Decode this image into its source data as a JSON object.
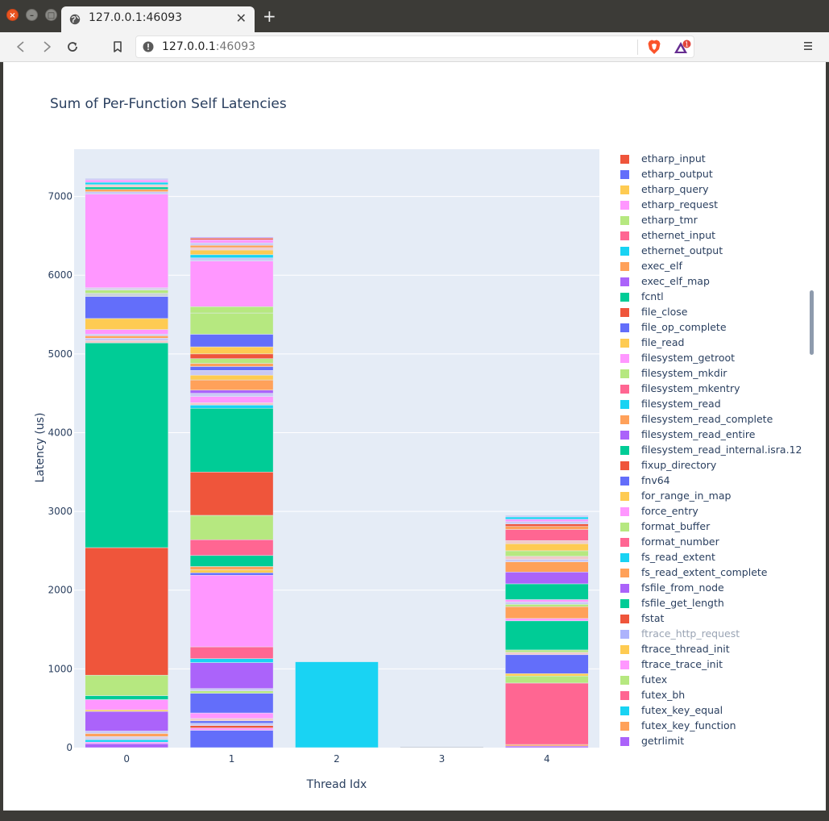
{
  "browser": {
    "tab_title": "127.0.0.1:46093",
    "url_host": "127.0.0.1",
    "url_port": ":46093",
    "rewards_badge": "1"
  },
  "chart_data": {
    "type": "bar",
    "title": "Sum of Per-Function Self Latencies",
    "xlabel": "Thread Idx",
    "ylabel": "Latency (us)",
    "categories": [
      "0",
      "1",
      "2",
      "3",
      "4"
    ],
    "ylim": [
      0,
      7600
    ],
    "yticks": [
      0,
      1000,
      2000,
      3000,
      4000,
      5000,
      6000,
      7000
    ],
    "totals": [
      7390,
      6650,
      1090,
      0,
      2990
    ],
    "series": [
      {
        "name": "etharp_input",
        "color": "#EF553B",
        "values": [
          0,
          10,
          0,
          0,
          0
        ]
      },
      {
        "name": "etharp_output",
        "color": "#636EFA",
        "values": [
          0,
          0,
          0,
          0,
          0
        ]
      },
      {
        "name": "etharp_query",
        "color": "#FECB52",
        "values": [
          0,
          0,
          0,
          0,
          0
        ]
      },
      {
        "name": "etharp_request",
        "color": "#FF97FF",
        "values": [
          0,
          10,
          0,
          0,
          0
        ]
      },
      {
        "name": "etharp_tmr",
        "color": "#B6E880",
        "values": [
          0,
          0,
          0,
          0,
          0
        ]
      },
      {
        "name": "ethernet_input",
        "color": "#FF6692",
        "values": [
          0,
          0,
          0,
          0,
          0
        ]
      },
      {
        "name": "ethernet_output",
        "color": "#19D3F3",
        "values": [
          0,
          0,
          0,
          0,
          0
        ]
      },
      {
        "name": "exec_elf",
        "color": "#FFA15A",
        "values": [
          0,
          0,
          0,
          0,
          0
        ]
      },
      {
        "name": "exec_elf_map",
        "color": "#AB63FA",
        "values": [
          0,
          0,
          0,
          0,
          0
        ]
      },
      {
        "name": "fcntl",
        "color": "#00CC96",
        "values": [
          0,
          0,
          0,
          0,
          0
        ]
      },
      {
        "name": "file_close",
        "color": "#EF553B",
        "values": [
          0,
          0,
          0,
          0,
          0
        ]
      },
      {
        "name": "file_op_complete",
        "color": "#636EFA",
        "values": [
          0,
          0,
          0,
          0,
          0
        ]
      },
      {
        "name": "file_read",
        "color": "#FECB52",
        "values": [
          0,
          0,
          0,
          0,
          0
        ]
      },
      {
        "name": "filesystem_getroot",
        "color": "#FF97FF",
        "values": [
          0,
          0,
          0,
          0,
          0
        ]
      },
      {
        "name": "filesystem_mkdir",
        "color": "#B6E880",
        "values": [
          0,
          0,
          0,
          0,
          0
        ]
      },
      {
        "name": "filesystem_mkentry",
        "color": "#FF6692",
        "values": [
          0,
          0,
          0,
          0,
          0
        ]
      },
      {
        "name": "filesystem_read",
        "color": "#19D3F3",
        "values": [
          0,
          0,
          0,
          0,
          0
        ]
      },
      {
        "name": "filesystem_read_complete",
        "color": "#FFA15A",
        "values": [
          0,
          0,
          0,
          0,
          0
        ]
      },
      {
        "name": "filesystem_read_entire",
        "color": "#AB63FA",
        "values": [
          0,
          0,
          0,
          0,
          0
        ]
      },
      {
        "name": "filesystem_read_internal.isra.12",
        "color": "#00CC96",
        "values": [
          0,
          0,
          0,
          0,
          0
        ]
      },
      {
        "name": "fixup_directory",
        "color": "#EF553B",
        "values": [
          0,
          0,
          0,
          0,
          0
        ]
      },
      {
        "name": "fnv64",
        "color": "#636EFA",
        "values": [
          0,
          0,
          0,
          0,
          0
        ]
      },
      {
        "name": "for_range_in_map",
        "color": "#FECB52",
        "values": [
          0,
          0,
          0,
          0,
          0
        ]
      },
      {
        "name": "force_entry",
        "color": "#FF97FF",
        "values": [
          0,
          0,
          0,
          0,
          0
        ]
      },
      {
        "name": "format_buffer",
        "color": "#B6E880",
        "values": [
          0,
          0,
          0,
          0,
          0
        ]
      },
      {
        "name": "format_number",
        "color": "#FF6692",
        "values": [
          0,
          0,
          0,
          0,
          0
        ]
      },
      {
        "name": "fs_read_extent",
        "color": "#19D3F3",
        "values": [
          0,
          0,
          0,
          0,
          0
        ]
      },
      {
        "name": "fs_read_extent_complete",
        "color": "#FFA15A",
        "values": [
          0,
          0,
          0,
          0,
          0
        ]
      },
      {
        "name": "fsfile_from_node",
        "color": "#AB63FA",
        "values": [
          0,
          0,
          0,
          0,
          0
        ]
      },
      {
        "name": "fsfile_get_length",
        "color": "#00CC96",
        "values": [
          0,
          0,
          0,
          0,
          0
        ]
      },
      {
        "name": "fstat",
        "color": "#EF553B",
        "values": [
          0,
          0,
          0,
          0,
          0
        ]
      },
      {
        "name": "ftrace_http_request",
        "color": "#ADB3FC",
        "hidden": true,
        "values": [
          0,
          0,
          0,
          0,
          0
        ]
      },
      {
        "name": "ftrace_thread_init",
        "color": "#FECB52",
        "values": [
          0,
          0,
          0,
          0,
          0
        ]
      },
      {
        "name": "ftrace_trace_init",
        "color": "#FF97FF",
        "values": [
          0,
          0,
          0,
          0,
          0
        ]
      },
      {
        "name": "futex",
        "color": "#B6E880",
        "values": [
          0,
          0,
          0,
          0,
          0
        ]
      },
      {
        "name": "futex_bh",
        "color": "#FF6692",
        "values": [
          0,
          0,
          0,
          0,
          780
        ]
      },
      {
        "name": "futex_key_equal",
        "color": "#19D3F3",
        "values": [
          0,
          0,
          1090,
          0,
          0
        ]
      },
      {
        "name": "futex_key_function",
        "color": "#FFA15A",
        "values": [
          0,
          0,
          0,
          0,
          0
        ]
      },
      {
        "name": "getrlimit",
        "color": "#AB63FA",
        "values": [
          0,
          0,
          0,
          0,
          0
        ]
      }
    ],
    "stack_segments": [
      [
        {
          "v": 50,
          "c": "#AB63FA"
        },
        {
          "v": 20,
          "c": "#FF97FF"
        },
        {
          "v": 30,
          "c": "#19D3F3"
        },
        {
          "v": 40,
          "c": "#D9D2E9"
        },
        {
          "v": 40,
          "c": "#FFA15A"
        },
        {
          "v": 30,
          "c": "#C9C9F5"
        },
        {
          "v": 250,
          "c": "#AB63FA"
        },
        {
          "v": 20,
          "c": "#FECB52"
        },
        {
          "v": 130,
          "c": "#FF97FF"
        },
        {
          "v": 50,
          "c": "#00CC96"
        },
        {
          "v": 260,
          "c": "#B6E880"
        },
        {
          "v": 1620,
          "c": "#EF553B"
        },
        {
          "v": 2600,
          "c": "#00CC96"
        },
        {
          "v": 30,
          "c": "#F2C9C9"
        },
        {
          "v": 30,
          "c": "#C9C9F5"
        },
        {
          "v": 30,
          "c": "#FFA15A"
        },
        {
          "v": 20,
          "c": "#C9C9F5"
        },
        {
          "v": 60,
          "c": "#FF97FF"
        },
        {
          "v": 140,
          "c": "#FECB52"
        },
        {
          "v": 280,
          "c": "#636EFA"
        },
        {
          "v": 40,
          "c": "#CBD3D9"
        },
        {
          "v": 40,
          "c": "#B6E880"
        },
        {
          "v": 30,
          "c": "#D9D2E9"
        },
        {
          "v": 1190,
          "c": "#FF97FF"
        },
        {
          "v": 30,
          "c": "#C9C9F5"
        },
        {
          "v": 30,
          "c": "#FFA15A"
        },
        {
          "v": 30,
          "c": "#00CC96"
        },
        {
          "v": 30,
          "c": "#F2C9C9"
        },
        {
          "v": 30,
          "c": "#19D3F3"
        },
        {
          "v": 30,
          "c": "#FF97FF"
        },
        {
          "v": 20,
          "c": "#C9C9F5"
        }
      ],
      [
        {
          "v": 220,
          "c": "#636EFA"
        },
        {
          "v": 30,
          "c": "#FF97FF"
        },
        {
          "v": 30,
          "c": "#EF553B"
        },
        {
          "v": 30,
          "c": "#C9C9F5"
        },
        {
          "v": 30,
          "c": "#636EFA"
        },
        {
          "v": 30,
          "c": "#F2C9C9"
        },
        {
          "v": 70,
          "c": "#FF97FF"
        },
        {
          "v": 250,
          "c": "#636EFA"
        },
        {
          "v": 30,
          "c": "#B6E880"
        },
        {
          "v": 30,
          "c": "#C9C9F5"
        },
        {
          "v": 330,
          "c": "#AB63FA"
        },
        {
          "v": 50,
          "c": "#19D3F3"
        },
        {
          "v": 150,
          "c": "#FF6692"
        },
        {
          "v": 910,
          "c": "#FF97FF"
        },
        {
          "v": 30,
          "c": "#636EFA"
        },
        {
          "v": 40,
          "c": "#FECB52"
        },
        {
          "v": 40,
          "c": "#FFA15A"
        },
        {
          "v": 140,
          "c": "#00CC96"
        },
        {
          "v": 200,
          "c": "#FF6692"
        },
        {
          "v": 310,
          "c": "#B6E880"
        },
        {
          "v": 550,
          "c": "#EF553B"
        },
        {
          "v": 810,
          "c": "#00CC96"
        },
        {
          "v": 40,
          "c": "#19D3F3"
        },
        {
          "v": 30,
          "c": "#F2C9C9"
        },
        {
          "v": 80,
          "c": "#FF97FF"
        },
        {
          "v": 40,
          "c": "#C9C9F5"
        },
        {
          "v": 40,
          "c": "#AB63FA"
        },
        {
          "v": 130,
          "c": "#FFA15A"
        },
        {
          "v": 60,
          "c": "#FECB52"
        },
        {
          "v": 60,
          "c": "#C9C9F5"
        },
        {
          "v": 50,
          "c": "#636EFA"
        },
        {
          "v": 40,
          "c": "#FFA15A"
        },
        {
          "v": 60,
          "c": "#B6E880"
        },
        {
          "v": 60,
          "c": "#EF553B"
        },
        {
          "v": 90,
          "c": "#FECB52"
        },
        {
          "v": 160,
          "c": "#636EFA"
        },
        {
          "v": 270,
          "c": "#B6E880"
        },
        {
          "v": 80,
          "c": "#B6E880"
        },
        {
          "v": 580,
          "c": "#FF97FF"
        },
        {
          "v": 40,
          "c": "#C9C9F5"
        },
        {
          "v": 40,
          "c": "#19D3F3"
        },
        {
          "v": 60,
          "c": "#FECB52"
        },
        {
          "v": 30,
          "c": "#F2C9C9"
        },
        {
          "v": 30,
          "c": "#FFA15A"
        },
        {
          "v": 30,
          "c": "#C9C9F5"
        },
        {
          "v": 40,
          "c": "#FF97FF"
        },
        {
          "v": 20,
          "c": "#EF553B"
        },
        {
          "v": 10,
          "c": "#AB63FA"
        }
      ],
      [
        {
          "v": 1090,
          "c": "#19D3F3"
        }
      ],
      [],
      [
        {
          "v": 20,
          "c": "#AB63FA"
        },
        {
          "v": 20,
          "c": "#FFA15A"
        },
        {
          "v": 780,
          "c": "#FF6692"
        },
        {
          "v": 90,
          "c": "#B6E880"
        },
        {
          "v": 30,
          "c": "#FECB52"
        },
        {
          "v": 240,
          "c": "#636EFA"
        },
        {
          "v": 30,
          "c": "#F2C9C9"
        },
        {
          "v": 30,
          "c": "#B6E880"
        },
        {
          "v": 370,
          "c": "#00CC96"
        },
        {
          "v": 30,
          "c": "#FF97FF"
        },
        {
          "v": 150,
          "c": "#FFA15A"
        },
        {
          "v": 30,
          "c": "#B6E880"
        },
        {
          "v": 30,
          "c": "#C9C9F5"
        },
        {
          "v": 30,
          "c": "#FF97FF"
        },
        {
          "v": 200,
          "c": "#00CC96"
        },
        {
          "v": 150,
          "c": "#AB63FA"
        },
        {
          "v": 130,
          "c": "#FFA15A"
        },
        {
          "v": 30,
          "c": "#C9C9F5"
        },
        {
          "v": 40,
          "c": "#F2C9C9"
        },
        {
          "v": 70,
          "c": "#B6E880"
        },
        {
          "v": 90,
          "c": "#FECB52"
        },
        {
          "v": 40,
          "c": "#F2C9C9"
        },
        {
          "v": 140,
          "c": "#FF6692"
        },
        {
          "v": 40,
          "c": "#FFA15A"
        },
        {
          "v": 30,
          "c": "#EF553B"
        },
        {
          "v": 30,
          "c": "#C9C9F5"
        },
        {
          "v": 30,
          "c": "#FF97FF"
        },
        {
          "v": 30,
          "c": "#19D3F3"
        },
        {
          "v": 20,
          "c": "#C9C9F5"
        }
      ]
    ]
  }
}
